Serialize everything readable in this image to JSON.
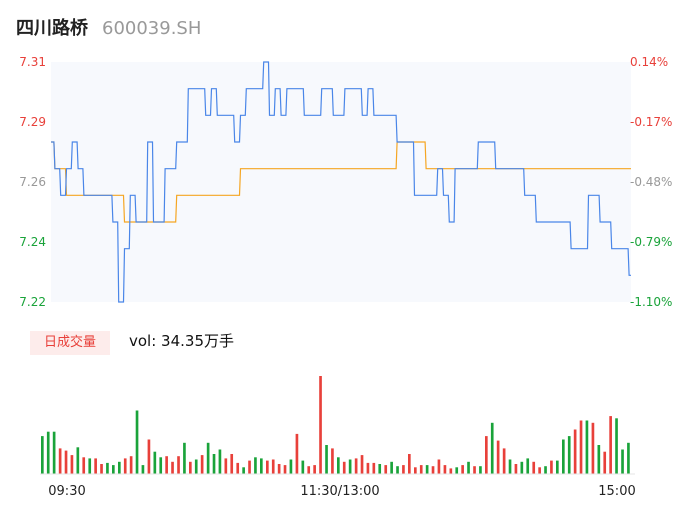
{
  "header": {
    "name": "四川路桥",
    "code": "600039.SH"
  },
  "volume_panel": {
    "badge": "日成交量",
    "vol_text": "vol: 34.35万手"
  },
  "colors": {
    "up": "#e8403a",
    "down": "#1aa33a",
    "neutral": "#999999",
    "price_line": "#4a86e8",
    "avg_line": "#f5a623"
  },
  "chart_data": [
    {
      "type": "line",
      "title": "",
      "x_ticks": [
        "09:30",
        "11:30/13:00",
        "15:00"
      ],
      "y_ticks_left": [
        "7.31",
        "7.29",
        "7.26",
        "7.24",
        "7.22"
      ],
      "y_ticks_right": [
        "0.14%",
        "-0.17%",
        "-0.48%",
        "-0.79%",
        "-1.10%"
      ],
      "ylim": [
        7.22,
        7.31
      ],
      "prev_close": 7.3,
      "series": [
        {
          "values": [
            7.28,
            7.27,
            7.26,
            7.27,
            7.28,
            7.27,
            7.26,
            7.26,
            7.26,
            7.26,
            7.26,
            7.25,
            7.22,
            7.24,
            7.26,
            7.25,
            7.25,
            7.28,
            7.25,
            7.25,
            7.27,
            7.27,
            7.28,
            7.28,
            7.3,
            7.3,
            7.3,
            7.29,
            7.3,
            7.29,
            7.29,
            7.29,
            7.28,
            7.29,
            7.3,
            7.3,
            7.3,
            7.31,
            7.29,
            7.3,
            7.29,
            7.3,
            7.3,
            7.3,
            7.29,
            7.29,
            7.29,
            7.3,
            7.3,
            7.29,
            7.29,
            7.3,
            7.3,
            7.3,
            7.29,
            7.3,
            7.29,
            7.29,
            7.29,
            7.29,
            7.28,
            7.28,
            7.28,
            7.26,
            7.26,
            7.26,
            7.26,
            7.27,
            7.26,
            7.25,
            7.27,
            7.27,
            7.27,
            7.27,
            7.28,
            7.28,
            7.28,
            7.27,
            7.27,
            7.27,
            7.27,
            7.27,
            7.26,
            7.26,
            7.25,
            7.25,
            7.25,
            7.25,
            7.25,
            7.25,
            7.24,
            7.24,
            7.24,
            7.26,
            7.26,
            7.25,
            7.25,
            7.24,
            7.24,
            7.24,
            7.23
          ]
        },
        {
          "values": [
            7.28,
            7.27,
            7.27,
            7.26,
            7.26,
            7.26,
            7.26,
            7.26,
            7.26,
            7.26,
            7.26,
            7.26,
            7.26,
            7.25,
            7.25,
            7.25,
            7.25,
            7.25,
            7.25,
            7.25,
            7.25,
            7.25,
            7.26,
            7.26,
            7.26,
            7.26,
            7.26,
            7.26,
            7.26,
            7.26,
            7.26,
            7.26,
            7.26,
            7.27,
            7.27,
            7.27,
            7.27,
            7.27,
            7.27,
            7.27,
            7.27,
            7.27,
            7.27,
            7.27,
            7.27,
            7.27,
            7.27,
            7.27,
            7.27,
            7.27,
            7.27,
            7.27,
            7.27,
            7.27,
            7.27,
            7.27,
            7.27,
            7.27,
            7.27,
            7.27,
            7.28,
            7.28,
            7.28,
            7.28,
            7.28,
            7.27,
            7.27,
            7.27,
            7.27,
            7.27,
            7.27,
            7.27,
            7.27,
            7.27,
            7.27,
            7.27,
            7.27,
            7.27,
            7.27,
            7.27,
            7.27,
            7.27,
            7.27,
            7.27,
            7.27,
            7.27,
            7.27,
            7.27,
            7.27,
            7.27,
            7.27,
            7.27,
            7.27,
            7.27,
            7.27,
            7.27,
            7.27,
            7.27,
            7.27,
            7.27,
            7.27
          ]
        }
      ]
    },
    {
      "type": "bar",
      "title": "",
      "values": [
        34,
        38,
        38,
        23,
        21,
        17,
        24,
        15,
        14,
        14,
        9,
        10,
        8,
        11,
        14,
        16,
        57,
        8,
        31,
        20,
        15,
        16,
        11,
        16,
        28,
        11,
        13,
        17,
        28,
        18,
        22,
        14,
        18,
        10,
        6,
        12,
        15,
        14,
        12,
        13,
        9,
        8,
        13,
        36,
        12,
        7,
        8,
        88,
        26,
        23,
        15,
        11,
        13,
        14,
        17,
        10,
        10,
        9,
        8,
        11,
        7,
        8,
        18,
        6,
        8,
        8,
        7,
        13,
        8,
        5,
        6,
        8,
        11,
        7,
        7,
        34,
        46,
        30,
        23,
        13,
        9,
        11,
        14,
        11,
        6,
        7,
        12,
        12,
        31,
        34,
        40,
        48,
        48,
        46,
        26,
        20,
        52,
        50,
        22,
        28
      ],
      "colors": [
        "down",
        "down",
        "down",
        "up",
        "up",
        "up",
        "down",
        "up",
        "down",
        "up",
        "up",
        "down",
        "down",
        "down",
        "up",
        "up",
        "down",
        "down",
        "up",
        "down",
        "down",
        "up",
        "up",
        "up",
        "down",
        "up",
        "down",
        "up",
        "down",
        "down",
        "down",
        "up",
        "up",
        "up",
        "down",
        "up",
        "down",
        "down",
        "up",
        "up",
        "up",
        "up",
        "down",
        "up",
        "down",
        "up",
        "up",
        "up",
        "down",
        "up",
        "down",
        "up",
        "down",
        "up",
        "up",
        "up",
        "up",
        "down",
        "up",
        "down",
        "down",
        "up",
        "up",
        "up",
        "up",
        "down",
        "up",
        "up",
        "up",
        "up",
        "down",
        "up",
        "down",
        "up",
        "down",
        "up",
        "down",
        "up",
        "up",
        "down",
        "up",
        "down",
        "down",
        "up",
        "up",
        "down",
        "up",
        "down",
        "down",
        "down",
        "up",
        "up",
        "down",
        "up",
        "down",
        "up",
        "up",
        "down",
        "down",
        "down"
      ]
    }
  ]
}
